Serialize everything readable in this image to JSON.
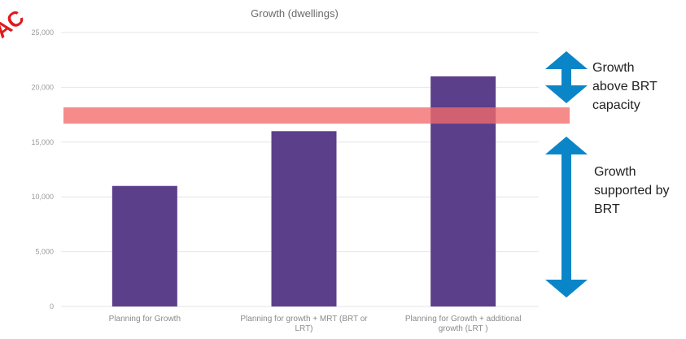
{
  "chart_data": {
    "type": "bar",
    "title": "Growth (dwellings)",
    "categories": [
      [
        "Planning for Growth"
      ],
      [
        "Planning for growth + MRT (BRT or",
        "LRT)"
      ],
      [
        "Planning for Growth + additional",
        "growth (LRT )"
      ]
    ],
    "values": [
      11000,
      16000,
      21000
    ],
    "ylim": [
      0,
      25000
    ],
    "yticks": [
      "0",
      "5,000",
      "10,000",
      "15,000",
      "20,000",
      "25,000"
    ],
    "ytick_values": [
      0,
      5000,
      10000,
      15000,
      20000,
      25000
    ],
    "grid": true,
    "bar_color": "#5b3f8a",
    "capacity_line": {
      "value": 17500,
      "color": "#f26a6a"
    },
    "annotations": [
      {
        "lines": [
          "Growth",
          "above BRT",
          "capacity"
        ],
        "arrow_from": 17500,
        "arrow_to": 25000
      },
      {
        "lines": [
          "Growth",
          "supported by",
          "BRT"
        ],
        "arrow_from": 0,
        "arrow_to": 17500
      }
    ],
    "arrow_color": "#0a86c8"
  },
  "watermark": {
    "text": "AC",
    "color": "#e01b1b"
  }
}
